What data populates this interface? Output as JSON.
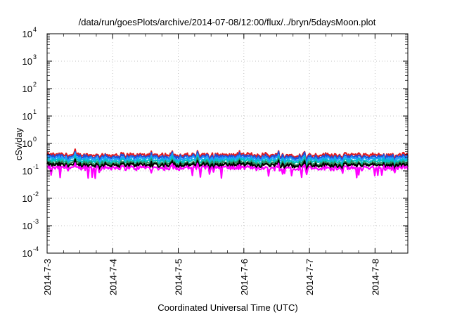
{
  "chart_data": {
    "type": "line",
    "title": "/data/run/goesPlots/archive/2014-07-08/12:00/flux/../bryn/5daysMoon.plot",
    "xlabel": "Coordinated Universal Time (UTC)",
    "ylabel": "cSv/day",
    "yscale": "log",
    "ylim": [
      0.0001,
      10000
    ],
    "xlim": [
      "2014-07-03",
      "2014-07-08 12:00"
    ],
    "grid": true,
    "x_ticks": [
      "2014-7-3",
      "2014-7-4",
      "2014-7-5",
      "2014-7-6",
      "2014-7-7",
      "2014-7-8"
    ],
    "y_ticks": [
      {
        "base": "10",
        "exp": "-4",
        "value": 0.0001
      },
      {
        "base": "10",
        "exp": "-3",
        "value": 0.001
      },
      {
        "base": "10",
        "exp": "-2",
        "value": 0.01
      },
      {
        "base": "10",
        "exp": "-1",
        "value": 0.1
      },
      {
        "base": "10",
        "exp": "0",
        "value": 1
      },
      {
        "base": "10",
        "exp": "1",
        "value": 10
      },
      {
        "base": "10",
        "exp": "2",
        "value": 100
      },
      {
        "base": "10",
        "exp": "3",
        "value": 1000
      },
      {
        "base": "10",
        "exp": "4",
        "value": 10000
      }
    ],
    "series": [
      {
        "color": "#e31a1c",
        "level": 0.38
      },
      {
        "color": "#1f4fd8",
        "level": 0.33
      },
      {
        "color": "#1fa0ff",
        "level": 0.28
      },
      {
        "color": "#00c2c2",
        "level": 0.23
      },
      {
        "color": "#2e8b57",
        "level": 0.19
      },
      {
        "color": "#000000",
        "level": 0.165
      },
      {
        "color": "#ff00ff",
        "level": 0.13
      }
    ]
  }
}
